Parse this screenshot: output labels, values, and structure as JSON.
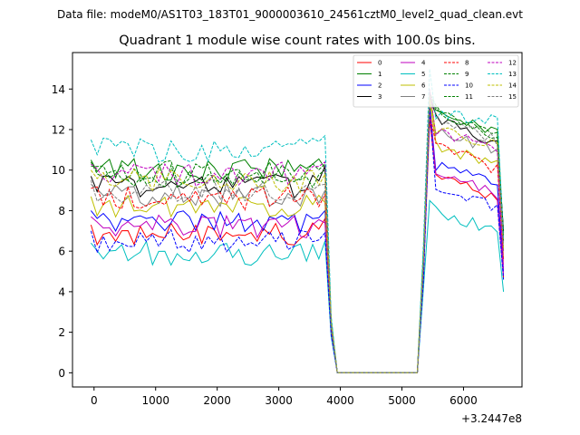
{
  "figure": {
    "suptitle": "Data file: modeM0/AS1T03_183T01_9000003610_24561cztM0_level2_quad_clean.evt"
  },
  "chart_data": {
    "type": "line",
    "title": "Quadrant 1 module wise count rates with 100.0s bins.",
    "xlabel": "",
    "ylabel": "",
    "x_offset_label": "+3.2447e8",
    "xlim": [
      -350,
      6950
    ],
    "ylim": [
      -0.7,
      15.8
    ],
    "x_ticks": [
      0,
      1000,
      2000,
      3000,
      4000,
      5000,
      6000
    ],
    "x_tick_labels": [
      "0",
      "1000",
      "2000",
      "3000",
      "4000",
      "5000",
      "6000"
    ],
    "y_ticks": [
      0,
      2,
      4,
      6,
      8,
      10,
      12,
      14
    ],
    "y_tick_labels": [
      "0",
      "2",
      "4",
      "6",
      "8",
      "10",
      "12",
      "14"
    ],
    "grid": false,
    "legend": {
      "placement": "top-right",
      "columns": 4
    },
    "segments": [
      {
        "x_start": -50,
        "x_end": 3650,
        "step": 100
      },
      {
        "x_start": 3750,
        "x_end": 3850,
        "step": 100
      },
      {
        "x_start": 3950,
        "x_end": 5250,
        "step": 100,
        "gap_value": 0
      },
      {
        "x_start": 5350,
        "x_end": 5450,
        "step": 100
      },
      {
        "x_start": 5550,
        "x_end": 6550,
        "step": 100
      },
      {
        "x_start": 6650,
        "x_end": 6650,
        "step": 100
      }
    ],
    "series": [
      {
        "name": "0",
        "color": "#ff0000",
        "dash": "solid",
        "base": 6.8,
        "before": [
          7.6,
          6.2,
          2.0
        ],
        "after": [
          4.8,
          12.5,
          10.0,
          8.5,
          4.7
        ]
      },
      {
        "name": "1",
        "color": "#008000",
        "dash": "solid",
        "base": 10.0,
        "before": [
          10.1,
          8.5,
          2.6
        ],
        "after": [
          6.0,
          13.6,
          13.0,
          11.8,
          6.8
        ]
      },
      {
        "name": "2",
        "color": "#0000ff",
        "dash": "solid",
        "base": 7.5,
        "before": [
          8.0,
          7.0,
          2.2
        ],
        "after": [
          5.0,
          13.2,
          10.2,
          9.4,
          5.0
        ]
      },
      {
        "name": "3",
        "color": "#000000",
        "dash": "solid",
        "base": 9.2,
        "before": [
          10.2,
          8.0,
          2.4
        ],
        "after": [
          5.5,
          13.6,
          12.5,
          11.2,
          7.0
        ]
      },
      {
        "name": "4",
        "color": "#bf00bf",
        "dash": "solid",
        "base": 7.2,
        "before": [
          7.4,
          6.5,
          2.1
        ],
        "after": [
          4.9,
          13.0,
          9.8,
          8.8,
          4.8
        ]
      },
      {
        "name": "5",
        "color": "#00bfbf",
        "dash": "solid",
        "base": 5.9,
        "before": [
          6.5,
          5.6,
          1.8
        ],
        "after": [
          4.2,
          8.5,
          8.0,
          7.0,
          4.0
        ]
      },
      {
        "name": "6",
        "color": "#bfbf00",
        "dash": "solid",
        "base": 8.2,
        "before": [
          8.4,
          7.2,
          2.2
        ],
        "after": [
          5.2,
          13.4,
          11.2,
          10.2,
          5.6
        ]
      },
      {
        "name": "7",
        "color": "#808080",
        "dash": "solid",
        "base": 8.8,
        "before": [
          9.0,
          7.8,
          2.3
        ],
        "after": [
          5.4,
          13.8,
          12.0,
          11.0,
          6.0
        ]
      },
      {
        "name": "8",
        "color": "#ff0000",
        "dash": "dashed",
        "base": 8.6,
        "before": [
          8.8,
          7.5,
          2.3
        ],
        "after": [
          5.3,
          12.8,
          11.4,
          10.0,
          5.5
        ]
      },
      {
        "name": "9",
        "color": "#008000",
        "dash": "dashed",
        "base": 9.7,
        "before": [
          10.0,
          8.3,
          2.5
        ],
        "after": [
          5.8,
          13.2,
          12.8,
          11.8,
          6.5
        ]
      },
      {
        "name": "10",
        "color": "#0000ff",
        "dash": "dashed",
        "base": 6.5,
        "before": [
          6.9,
          6.0,
          1.9
        ],
        "after": [
          4.6,
          13.0,
          9.2,
          8.2,
          4.6
        ]
      },
      {
        "name": "11",
        "color": "#008000",
        "dash": "dashed",
        "base": 9.9,
        "before": [
          10.3,
          8.6,
          2.5
        ],
        "after": [
          5.9,
          13.8,
          13.1,
          11.5,
          6.9
        ]
      },
      {
        "name": "12",
        "color": "#bf00bf",
        "dash": "dashed",
        "base": 9.8,
        "before": [
          10.4,
          8.4,
          2.5
        ],
        "after": [
          5.7,
          14.0,
          12.0,
          11.0,
          5.2
        ]
      },
      {
        "name": "13",
        "color": "#00bfbf",
        "dash": "dashed",
        "base": 11.0,
        "before": [
          11.7,
          9.2,
          2.8
        ],
        "after": [
          6.4,
          15.0,
          12.8,
          12.4,
          6.6
        ]
      },
      {
        "name": "14",
        "color": "#bfbf00",
        "dash": "dashed",
        "base": 9.5,
        "before": [
          9.8,
          8.2,
          2.5
        ],
        "after": [
          5.6,
          13.6,
          12.0,
          11.2,
          6.2
        ]
      },
      {
        "name": "15",
        "color": "#808080",
        "dash": "dashed",
        "base": 9.0,
        "before": [
          9.3,
          8.0,
          2.4
        ],
        "after": [
          5.5,
          13.9,
          12.6,
          11.4,
          6.3
        ]
      }
    ]
  }
}
